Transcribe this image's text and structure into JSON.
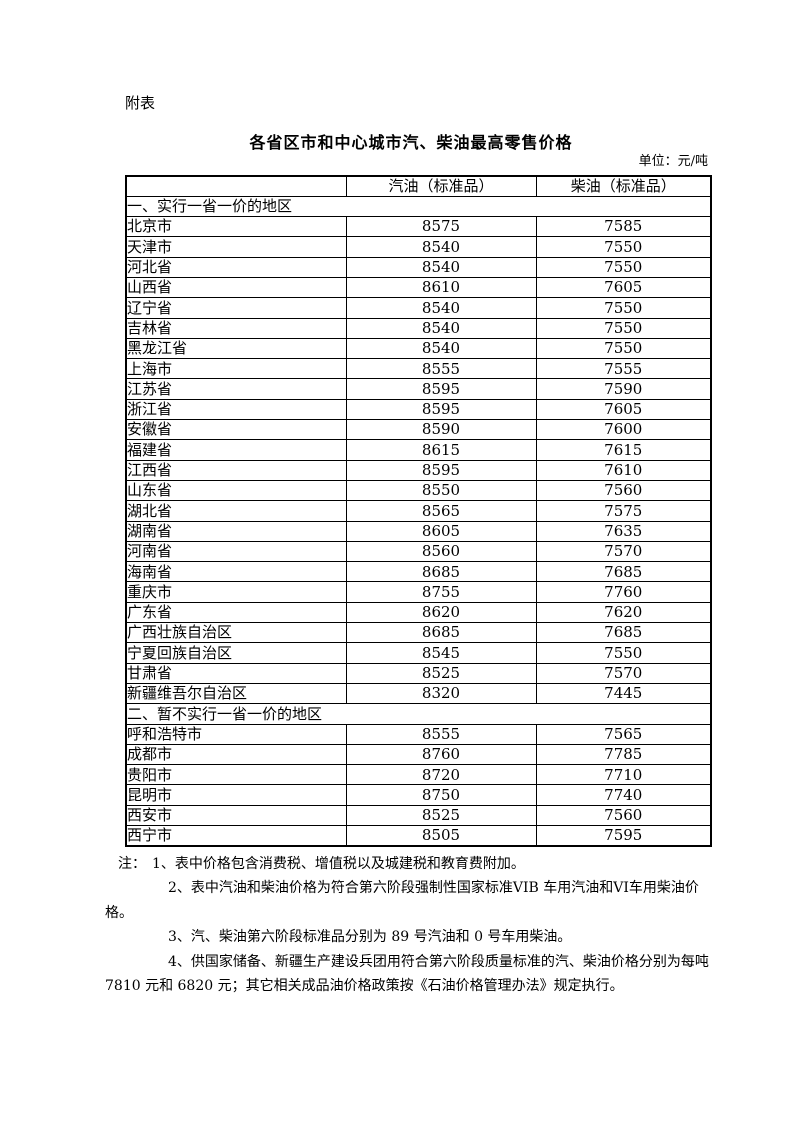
{
  "page": {
    "appendix_tag": "附表",
    "title": "各省区市和中心城市汽、柴油最高零售价格",
    "unit_label": "单位：元/吨"
  },
  "table": {
    "columns": [
      "",
      "汽油（标准品）",
      "柴油（标准品）"
    ],
    "sections": [
      {
        "header": "一、实行一省一价的地区",
        "rows": [
          {
            "region": "北京市",
            "gasoline": "8575",
            "diesel": "7585"
          },
          {
            "region": "天津市",
            "gasoline": "8540",
            "diesel": "7550"
          },
          {
            "region": "河北省",
            "gasoline": "8540",
            "diesel": "7550"
          },
          {
            "region": "山西省",
            "gasoline": "8610",
            "diesel": "7605"
          },
          {
            "region": "辽宁省",
            "gasoline": "8540",
            "diesel": "7550"
          },
          {
            "region": "吉林省",
            "gasoline": "8540",
            "diesel": "7550"
          },
          {
            "region": "黑龙江省",
            "gasoline": "8540",
            "diesel": "7550"
          },
          {
            "region": "上海市",
            "gasoline": "8555",
            "diesel": "7555"
          },
          {
            "region": "江苏省",
            "gasoline": "8595",
            "diesel": "7590"
          },
          {
            "region": "浙江省",
            "gasoline": "8595",
            "diesel": "7605"
          },
          {
            "region": "安徽省",
            "gasoline": "8590",
            "diesel": "7600"
          },
          {
            "region": "福建省",
            "gasoline": "8615",
            "diesel": "7615"
          },
          {
            "region": "江西省",
            "gasoline": "8595",
            "diesel": "7610"
          },
          {
            "region": "山东省",
            "gasoline": "8550",
            "diesel": "7560"
          },
          {
            "region": "湖北省",
            "gasoline": "8565",
            "diesel": "7575"
          },
          {
            "region": "湖南省",
            "gasoline": "8605",
            "diesel": "7635"
          },
          {
            "region": "河南省",
            "gasoline": "8560",
            "diesel": "7570"
          },
          {
            "region": "海南省",
            "gasoline": "8685",
            "diesel": "7685"
          },
          {
            "region": "重庆市",
            "gasoline": "8755",
            "diesel": "7760"
          },
          {
            "region": "广东省",
            "gasoline": "8620",
            "diesel": "7620"
          },
          {
            "region": "广西壮族自治区",
            "gasoline": "8685",
            "diesel": "7685"
          },
          {
            "region": "宁夏回族自治区",
            "gasoline": "8545",
            "diesel": "7550"
          },
          {
            "region": "甘肃省",
            "gasoline": "8525",
            "diesel": "7570"
          },
          {
            "region": "新疆维吾尔自治区",
            "gasoline": "8320",
            "diesel": "7445"
          }
        ]
      },
      {
        "header": "二、暂不实行一省一价的地区",
        "rows": [
          {
            "region": "呼和浩特市",
            "gasoline": "8555",
            "diesel": "7565"
          },
          {
            "region": "成都市",
            "gasoline": "8760",
            "diesel": "7785"
          },
          {
            "region": "贵阳市",
            "gasoline": "8720",
            "diesel": "7710"
          },
          {
            "region": "昆明市",
            "gasoline": "8750",
            "diesel": "7740"
          },
          {
            "region": "西安市",
            "gasoline": "8525",
            "diesel": "7560"
          },
          {
            "region": "西宁市",
            "gasoline": "8505",
            "diesel": "7595"
          }
        ]
      }
    ]
  },
  "notes": {
    "label": "注：",
    "items": [
      "1、表中价格包含消费税、增值税以及城建税和教育费附加。",
      "2、表中汽油和柴油价格为符合第六阶段强制性国家标准VIB 车用汽油和VI车用柴油价格。",
      "3、汽、柴油第六阶段标准品分别为 89 号汽油和 0 号车用柴油。",
      "4、供国家储备、新疆生产建设兵团用符合第六阶段质量标准的汽、柴油价格分别为每吨 7810 元和 6820 元；其它相关成品油价格政策按《石油价格管理办法》规定执行。"
    ]
  }
}
